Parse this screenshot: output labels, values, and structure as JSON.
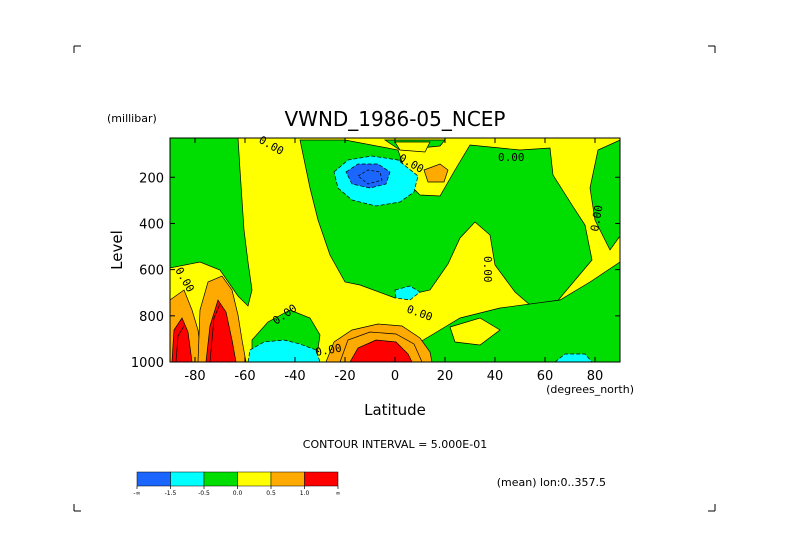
{
  "chart_data": {
    "type": "heatmap",
    "title": "VWND_1986-05_NCEP",
    "xlabel": "Latitude",
    "x_units": "(degrees_north)",
    "ylabel": "Level",
    "y_units": "(millibar)",
    "x_ticks": [
      "-80",
      "-60",
      "-40",
      "-20",
      "0",
      "20",
      "40",
      "60",
      "80"
    ],
    "y_ticks": [
      "200",
      "400",
      "600",
      "800",
      "1000"
    ],
    "xlim": [
      -90,
      90
    ],
    "ylim": [
      1000,
      30
    ],
    "contour_interval_text": "CONTOUR INTERVAL = 5.000E-01",
    "mean_text": "(mean) lon:0..357.5",
    "contour_labels": [
      "0.00",
      "0.00",
      "0.00",
      "0.00",
      "0.00",
      "0.00",
      "0.00",
      "0.00",
      "0.00"
    ],
    "colorbar": {
      "levels": [
        "-∞",
        "-1.5",
        "-0.5",
        "0.0",
        "0.5",
        "1.0",
        "∞"
      ],
      "colors": [
        "#1a66ff",
        "#00ffff",
        "#00dd00",
        "#ffff00",
        "#ffaa00",
        "#ff0000"
      ]
    },
    "fill_colors": {
      "blue": "#1a66ff",
      "cyan": "#00ffff",
      "green": "#00dd00",
      "yellow": "#ffff00",
      "orange": "#ffaa00",
      "red": "#ff0000"
    }
  }
}
